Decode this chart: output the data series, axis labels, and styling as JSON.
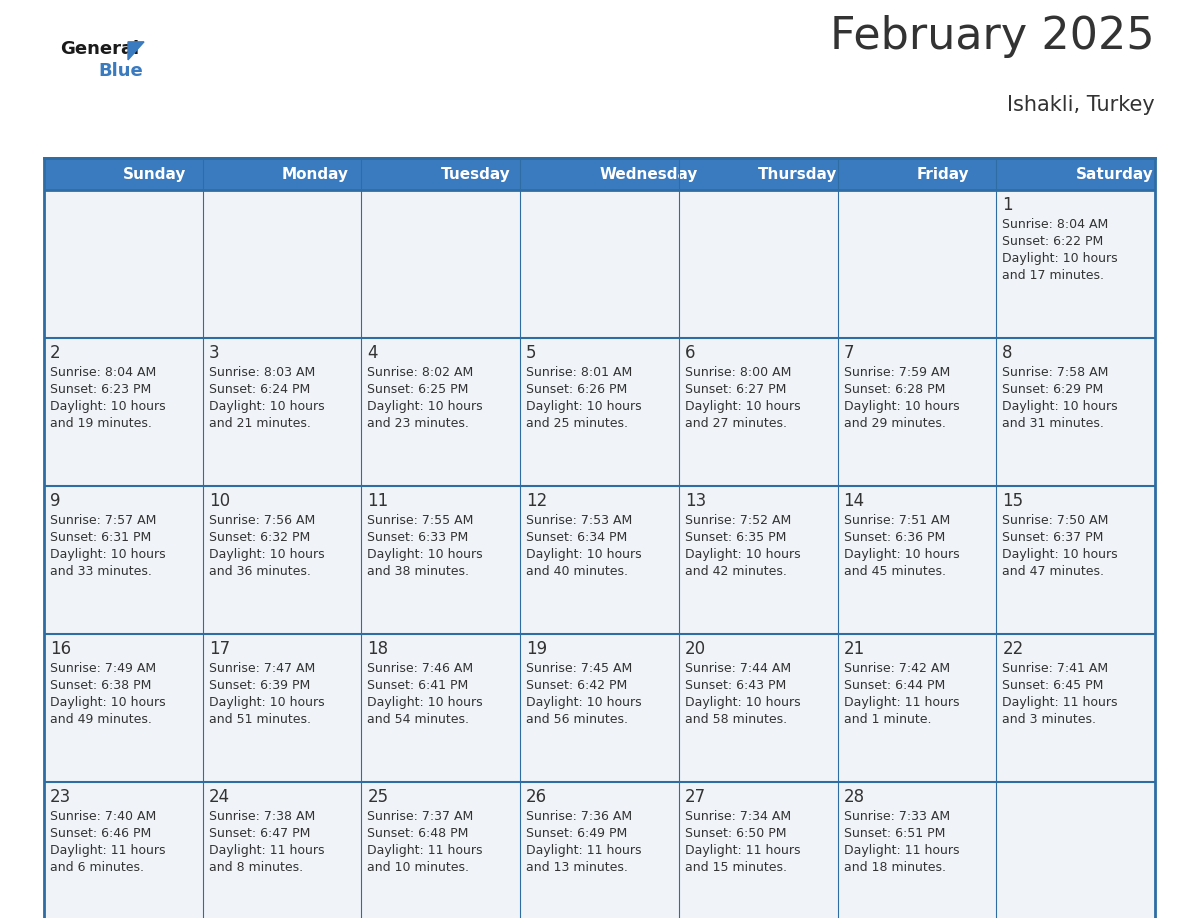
{
  "title": "February 2025",
  "subtitle": "Ishakli, Turkey",
  "header_bg": "#3a7abf",
  "header_text": "#ffffff",
  "cell_bg": "#f0f4f8",
  "day_headers": [
    "Sunday",
    "Monday",
    "Tuesday",
    "Wednesday",
    "Thursday",
    "Friday",
    "Saturday"
  ],
  "days": [
    {
      "day": 1,
      "col": 6,
      "row": 0,
      "sunrise": "8:04 AM",
      "sunset": "6:22 PM",
      "daylight": "10 hours",
      "daylight2": "and 17 minutes."
    },
    {
      "day": 2,
      "col": 0,
      "row": 1,
      "sunrise": "8:04 AM",
      "sunset": "6:23 PM",
      "daylight": "10 hours",
      "daylight2": "and 19 minutes."
    },
    {
      "day": 3,
      "col": 1,
      "row": 1,
      "sunrise": "8:03 AM",
      "sunset": "6:24 PM",
      "daylight": "10 hours",
      "daylight2": "and 21 minutes."
    },
    {
      "day": 4,
      "col": 2,
      "row": 1,
      "sunrise": "8:02 AM",
      "sunset": "6:25 PM",
      "daylight": "10 hours",
      "daylight2": "and 23 minutes."
    },
    {
      "day": 5,
      "col": 3,
      "row": 1,
      "sunrise": "8:01 AM",
      "sunset": "6:26 PM",
      "daylight": "10 hours",
      "daylight2": "and 25 minutes."
    },
    {
      "day": 6,
      "col": 4,
      "row": 1,
      "sunrise": "8:00 AM",
      "sunset": "6:27 PM",
      "daylight": "10 hours",
      "daylight2": "and 27 minutes."
    },
    {
      "day": 7,
      "col": 5,
      "row": 1,
      "sunrise": "7:59 AM",
      "sunset": "6:28 PM",
      "daylight": "10 hours",
      "daylight2": "and 29 minutes."
    },
    {
      "day": 8,
      "col": 6,
      "row": 1,
      "sunrise": "7:58 AM",
      "sunset": "6:29 PM",
      "daylight": "10 hours",
      "daylight2": "and 31 minutes."
    },
    {
      "day": 9,
      "col": 0,
      "row": 2,
      "sunrise": "7:57 AM",
      "sunset": "6:31 PM",
      "daylight": "10 hours",
      "daylight2": "and 33 minutes."
    },
    {
      "day": 10,
      "col": 1,
      "row": 2,
      "sunrise": "7:56 AM",
      "sunset": "6:32 PM",
      "daylight": "10 hours",
      "daylight2": "and 36 minutes."
    },
    {
      "day": 11,
      "col": 2,
      "row": 2,
      "sunrise": "7:55 AM",
      "sunset": "6:33 PM",
      "daylight": "10 hours",
      "daylight2": "and 38 minutes."
    },
    {
      "day": 12,
      "col": 3,
      "row": 2,
      "sunrise": "7:53 AM",
      "sunset": "6:34 PM",
      "daylight": "10 hours",
      "daylight2": "and 40 minutes."
    },
    {
      "day": 13,
      "col": 4,
      "row": 2,
      "sunrise": "7:52 AM",
      "sunset": "6:35 PM",
      "daylight": "10 hours",
      "daylight2": "and 42 minutes."
    },
    {
      "day": 14,
      "col": 5,
      "row": 2,
      "sunrise": "7:51 AM",
      "sunset": "6:36 PM",
      "daylight": "10 hours",
      "daylight2": "and 45 minutes."
    },
    {
      "day": 15,
      "col": 6,
      "row": 2,
      "sunrise": "7:50 AM",
      "sunset": "6:37 PM",
      "daylight": "10 hours",
      "daylight2": "and 47 minutes."
    },
    {
      "day": 16,
      "col": 0,
      "row": 3,
      "sunrise": "7:49 AM",
      "sunset": "6:38 PM",
      "daylight": "10 hours",
      "daylight2": "and 49 minutes."
    },
    {
      "day": 17,
      "col": 1,
      "row": 3,
      "sunrise": "7:47 AM",
      "sunset": "6:39 PM",
      "daylight": "10 hours",
      "daylight2": "and 51 minutes."
    },
    {
      "day": 18,
      "col": 2,
      "row": 3,
      "sunrise": "7:46 AM",
      "sunset": "6:41 PM",
      "daylight": "10 hours",
      "daylight2": "and 54 minutes."
    },
    {
      "day": 19,
      "col": 3,
      "row": 3,
      "sunrise": "7:45 AM",
      "sunset": "6:42 PM",
      "daylight": "10 hours",
      "daylight2": "and 56 minutes."
    },
    {
      "day": 20,
      "col": 4,
      "row": 3,
      "sunrise": "7:44 AM",
      "sunset": "6:43 PM",
      "daylight": "10 hours",
      "daylight2": "and 58 minutes."
    },
    {
      "day": 21,
      "col": 5,
      "row": 3,
      "sunrise": "7:42 AM",
      "sunset": "6:44 PM",
      "daylight": "11 hours",
      "daylight2": "and 1 minute."
    },
    {
      "day": 22,
      "col": 6,
      "row": 3,
      "sunrise": "7:41 AM",
      "sunset": "6:45 PM",
      "daylight": "11 hours",
      "daylight2": "and 3 minutes."
    },
    {
      "day": 23,
      "col": 0,
      "row": 4,
      "sunrise": "7:40 AM",
      "sunset": "6:46 PM",
      "daylight": "11 hours",
      "daylight2": "and 6 minutes."
    },
    {
      "day": 24,
      "col": 1,
      "row": 4,
      "sunrise": "7:38 AM",
      "sunset": "6:47 PM",
      "daylight": "11 hours",
      "daylight2": "and 8 minutes."
    },
    {
      "day": 25,
      "col": 2,
      "row": 4,
      "sunrise": "7:37 AM",
      "sunset": "6:48 PM",
      "daylight": "11 hours",
      "daylight2": "and 10 minutes."
    },
    {
      "day": 26,
      "col": 3,
      "row": 4,
      "sunrise": "7:36 AM",
      "sunset": "6:49 PM",
      "daylight": "11 hours",
      "daylight2": "and 13 minutes."
    },
    {
      "day": 27,
      "col": 4,
      "row": 4,
      "sunrise": "7:34 AM",
      "sunset": "6:50 PM",
      "daylight": "11 hours",
      "daylight2": "and 15 minutes."
    },
    {
      "day": 28,
      "col": 5,
      "row": 4,
      "sunrise": "7:33 AM",
      "sunset": "6:51 PM",
      "daylight": "11 hours",
      "daylight2": "and 18 minutes."
    }
  ],
  "num_rows": 5,
  "num_cols": 7,
  "border_color": "#2e6da4",
  "text_color": "#333333",
  "logo_color1": "#1a1a1a",
  "logo_color2": "#3a7abf",
  "triangle_color": "#3a7abf"
}
